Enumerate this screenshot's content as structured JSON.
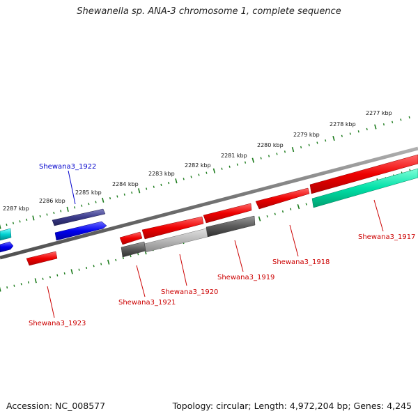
{
  "title": "Shewanella sp. ANA-3 chromosome 1, complete sequence",
  "footer": {
    "accession": "Accession: NC_008577",
    "summary": "Topology: circular; Length: 4,972,204 bp; Genes: 4,245"
  },
  "colors": {
    "backbone": "#808080",
    "forward_tick": "#1a7a1a",
    "reverse_tick": "#1a7a1a",
    "highlight_label": "#0000cc",
    "gene_label": "#cc0000"
  },
  "ruler": {
    "unit": "kbp",
    "labels": [
      "2277 kbp",
      "2278 kbp",
      "2279 kbp",
      "2280 kbp",
      "2281 kbp",
      "2282 kbp",
      "2283 kbp",
      "2284 kbp",
      "2285 kbp",
      "2286 kbp",
      "2287 kbp"
    ]
  },
  "gene_labels": [
    {
      "id": "g1922",
      "text": "Shewana3_1922",
      "color": "#0000cc"
    },
    {
      "id": "g1917",
      "text": "Shewana3_1917",
      "color": "#cc0000"
    },
    {
      "id": "g1918",
      "text": "Shewana3_1918",
      "color": "#cc0000"
    },
    {
      "id": "g1919",
      "text": "Shewana3_1919",
      "color": "#cc0000"
    },
    {
      "id": "g1920",
      "text": "Shewana3_1920",
      "color": "#cc0000"
    },
    {
      "id": "g1921",
      "text": "Shewana3_1921",
      "color": "#cc0000"
    },
    {
      "id": "g1923",
      "text": "Shewana3_1923",
      "color": "#cc0000"
    }
  ]
}
